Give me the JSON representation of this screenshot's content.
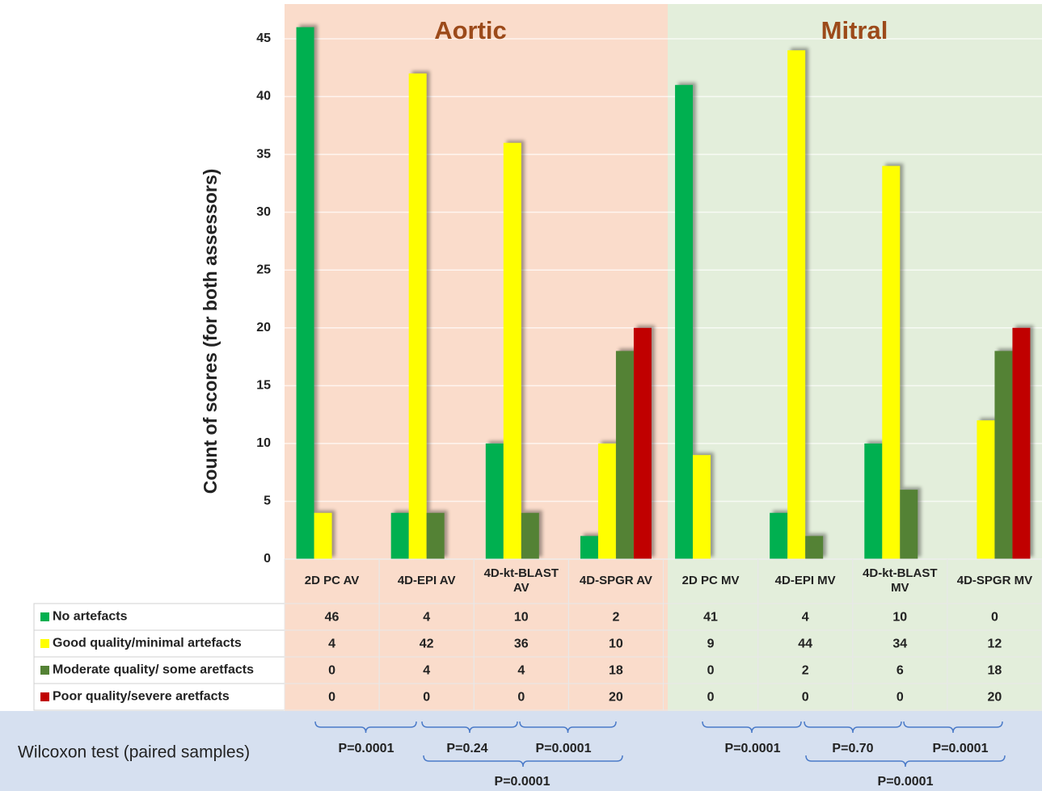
{
  "chart_data": {
    "type": "bar",
    "y_label": "Count of scores (for both assessors)",
    "panels": [
      {
        "label": "Aortic"
      },
      {
        "label": "Mitral"
      }
    ],
    "categories": [
      "2D PC AV",
      "4D-EPI AV",
      "4D-kt-BLAST AV",
      "4D-SPGR AV",
      "2D PC MV",
      "4D-EPI MV",
      "4D-kt-BLAST MV",
      "4D-SPGR MV"
    ],
    "series": [
      {
        "name": "No artefacts",
        "color": "#00b050",
        "values": [
          46,
          4,
          10,
          2,
          41,
          4,
          10,
          0
        ]
      },
      {
        "name": "Good quality/minimal artefacts",
        "color": "#ffff00",
        "values": [
          4,
          42,
          36,
          10,
          9,
          44,
          34,
          12
        ]
      },
      {
        "name": "Moderate quality/ some aretfacts",
        "color": "#548235",
        "values": [
          0,
          4,
          4,
          18,
          0,
          2,
          6,
          18
        ]
      },
      {
        "name": "Poor quality/severe aretfacts",
        "color": "#c00000",
        "values": [
          0,
          0,
          0,
          20,
          0,
          0,
          0,
          20
        ]
      }
    ],
    "ylim": [
      0,
      48
    ],
    "yticks": [
      0,
      5,
      10,
      15,
      20,
      25,
      30,
      35,
      40,
      45
    ],
    "grid": true,
    "wilcoxon": {
      "label": "Wilcoxon test (paired samples)",
      "p_values": [
        "P=0.0001",
        "P=0.24",
        "P=0.0001",
        "P=0.0001",
        "P=0.0001",
        "P=0.70",
        "P=0.0001",
        "P=0.0001"
      ]
    }
  }
}
